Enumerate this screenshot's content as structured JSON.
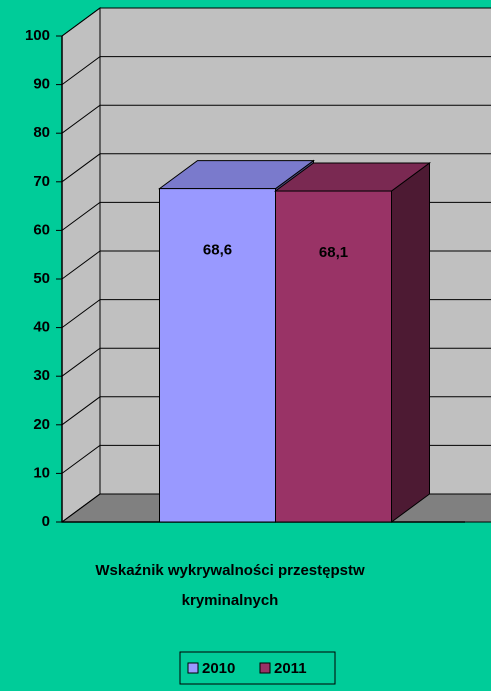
{
  "chart_data": {
    "type": "bar3d",
    "categories": [
      "Wskaźnik wykrywalności przestępstw kryminalnych"
    ],
    "series": [
      {
        "name": "2010",
        "color": "#9999ff",
        "values": [
          68.6
        ],
        "value_labels": [
          "68,6"
        ]
      },
      {
        "name": "2011",
        "color": "#993366",
        "values": [
          68.1
        ],
        "value_labels": [
          "68,1"
        ]
      }
    ],
    "ylim": [
      0,
      100
    ],
    "yticks": [
      0,
      10,
      20,
      30,
      40,
      50,
      60,
      70,
      80,
      90,
      100
    ],
    "grid": true,
    "legend": "bottom"
  }
}
